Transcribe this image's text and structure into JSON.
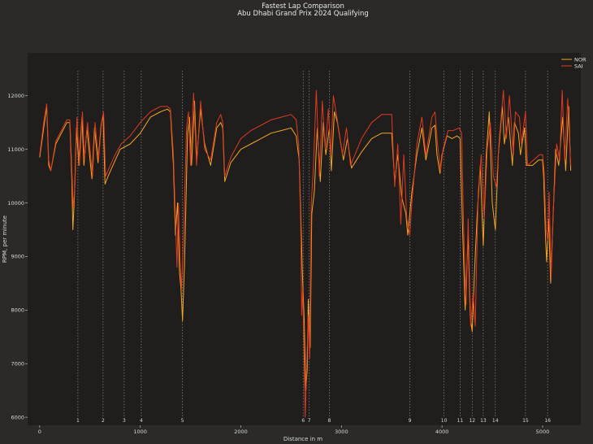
{
  "chart_data": {
    "type": "line",
    "title": "Fastest Lap Comparison",
    "subtitle": "Abu Dhabi Grand Prix 2024 Qualifying",
    "xlabel": "Distance in m",
    "ylabel": "RPM, per minute",
    "xlim": [
      -120,
      5380
    ],
    "ylim": [
      5850,
      12800
    ],
    "x_ticks": [
      0,
      1000,
      2000,
      3000,
      4000,
      5000
    ],
    "y_ticks": [
      6000,
      7000,
      8000,
      9000,
      10000,
      11000,
      12000
    ],
    "grid": false,
    "legend": "top-right",
    "corners": [
      {
        "label": "1",
        "distance": 380
      },
      {
        "label": "2",
        "distance": 630
      },
      {
        "label": "3",
        "distance": 840
      },
      {
        "label": "4",
        "distance": 1010
      },
      {
        "label": "5",
        "distance": 1420
      },
      {
        "label": "6",
        "distance": 2620
      },
      {
        "label": "7",
        "distance": 2680
      },
      {
        "label": "8",
        "distance": 2880
      },
      {
        "label": "9",
        "distance": 3680
      },
      {
        "label": "10",
        "distance": 4020
      },
      {
        "label": "11",
        "distance": 4180
      },
      {
        "label": "12",
        "distance": 4300
      },
      {
        "label": "13",
        "distance": 4410
      },
      {
        "label": "14",
        "distance": 4530
      },
      {
        "label": "15",
        "distance": 4830
      },
      {
        "label": "16",
        "distance": 5050
      }
    ],
    "series": [
      {
        "name": "NOR",
        "color": "#f5a623",
        "points": [
          [
            0,
            10850
          ],
          [
            40,
            11400
          ],
          [
            70,
            11800
          ],
          [
            90,
            10700
          ],
          [
            110,
            10600
          ],
          [
            160,
            11100
          ],
          [
            270,
            11500
          ],
          [
            300,
            11500
          ],
          [
            320,
            10400
          ],
          [
            330,
            9500
          ],
          [
            345,
            10100
          ],
          [
            365,
            11400
          ],
          [
            390,
            10700
          ],
          [
            420,
            11600
          ],
          [
            440,
            10700
          ],
          [
            470,
            11400
          ],
          [
            500,
            10800
          ],
          [
            520,
            10450
          ],
          [
            545,
            11400
          ],
          [
            580,
            10750
          ],
          [
            610,
            11450
          ],
          [
            630,
            11650
          ],
          [
            650,
            10350
          ],
          [
            680,
            10500
          ],
          [
            740,
            10750
          ],
          [
            800,
            11000
          ],
          [
            900,
            11100
          ],
          [
            1000,
            11300
          ],
          [
            1100,
            11600
          ],
          [
            1200,
            11700
          ],
          [
            1270,
            11750
          ],
          [
            1300,
            11700
          ],
          [
            1330,
            10700
          ],
          [
            1350,
            9400
          ],
          [
            1370,
            10000
          ],
          [
            1390,
            8700
          ],
          [
            1405,
            8400
          ],
          [
            1420,
            7800
          ],
          [
            1440,
            8900
          ],
          [
            1470,
            11300
          ],
          [
            1490,
            11600
          ],
          [
            1510,
            10700
          ],
          [
            1540,
            11900
          ],
          [
            1560,
            10800
          ],
          [
            1600,
            11750
          ],
          [
            1640,
            11100
          ],
          [
            1700,
            10700
          ],
          [
            1760,
            11400
          ],
          [
            1800,
            11500
          ],
          [
            1820,
            11400
          ],
          [
            1840,
            10400
          ],
          [
            1900,
            10750
          ],
          [
            2000,
            11000
          ],
          [
            2100,
            11100
          ],
          [
            2200,
            11200
          ],
          [
            2300,
            11300
          ],
          [
            2400,
            11350
          ],
          [
            2500,
            11400
          ],
          [
            2550,
            11250
          ],
          [
            2580,
            10800
          ],
          [
            2600,
            9500
          ],
          [
            2610,
            8800
          ],
          [
            2630,
            7800
          ],
          [
            2645,
            6500
          ],
          [
            2660,
            6900
          ],
          [
            2670,
            8200
          ],
          [
            2690,
            7300
          ],
          [
            2705,
            9800
          ],
          [
            2730,
            10200
          ],
          [
            2760,
            11400
          ],
          [
            2790,
            10400
          ],
          [
            2820,
            11500
          ],
          [
            2845,
            10900
          ],
          [
            2880,
            11400
          ],
          [
            2900,
            10600
          ],
          [
            2930,
            11700
          ],
          [
            2960,
            11500
          ],
          [
            3020,
            10800
          ],
          [
            3060,
            11200
          ],
          [
            3100,
            10650
          ],
          [
            3200,
            10950
          ],
          [
            3300,
            11200
          ],
          [
            3400,
            11300
          ],
          [
            3500,
            11300
          ],
          [
            3530,
            10400
          ],
          [
            3560,
            10900
          ],
          [
            3600,
            10100
          ],
          [
            3640,
            9800
          ],
          [
            3660,
            9400
          ],
          [
            3700,
            10200
          ],
          [
            3750,
            10900
          ],
          [
            3800,
            11400
          ],
          [
            3840,
            10800
          ],
          [
            3900,
            11400
          ],
          [
            3930,
            11450
          ],
          [
            3950,
            10900
          ],
          [
            3980,
            10550
          ],
          [
            4000,
            10900
          ],
          [
            4050,
            11250
          ],
          [
            4100,
            11200
          ],
          [
            4150,
            11250
          ],
          [
            4180,
            11200
          ],
          [
            4200,
            9800
          ],
          [
            4230,
            8000
          ],
          [
            4260,
            9400
          ],
          [
            4280,
            7900
          ],
          [
            4300,
            7600
          ],
          [
            4320,
            8600
          ],
          [
            4350,
            9800
          ],
          [
            4380,
            10700
          ],
          [
            4410,
            9200
          ],
          [
            4440,
            10900
          ],
          [
            4470,
            11700
          ],
          [
            4500,
            10000
          ],
          [
            4530,
            9500
          ],
          [
            4560,
            10900
          ],
          [
            4600,
            11800
          ],
          [
            4620,
            11100
          ],
          [
            4660,
            11600
          ],
          [
            4700,
            10700
          ],
          [
            4720,
            11500
          ],
          [
            4760,
            11300
          ],
          [
            4780,
            10900
          ],
          [
            4820,
            11400
          ],
          [
            4840,
            10700
          ],
          [
            4900,
            10700
          ],
          [
            4960,
            10800
          ],
          [
            5000,
            10800
          ],
          [
            5010,
            10500
          ],
          [
            5030,
            9300
          ],
          [
            5040,
            8900
          ],
          [
            5060,
            9700
          ],
          [
            5080,
            8500
          ],
          [
            5100,
            9500
          ],
          [
            5130,
            11000
          ],
          [
            5160,
            10700
          ],
          [
            5200,
            11600
          ],
          [
            5230,
            10600
          ],
          [
            5260,
            11800
          ],
          [
            5280,
            10600
          ]
        ]
      },
      {
        "name": "SAI",
        "color": "#e03a1e",
        "points": [
          [
            0,
            10900
          ],
          [
            40,
            11500
          ],
          [
            70,
            11850
          ],
          [
            90,
            10800
          ],
          [
            110,
            10600
          ],
          [
            160,
            11150
          ],
          [
            270,
            11550
          ],
          [
            300,
            11550
          ],
          [
            320,
            10600
          ],
          [
            335,
            9900
          ],
          [
            350,
            10300
          ],
          [
            370,
            11600
          ],
          [
            395,
            10700
          ],
          [
            425,
            11700
          ],
          [
            445,
            10800
          ],
          [
            475,
            11500
          ],
          [
            505,
            10900
          ],
          [
            525,
            10500
          ],
          [
            550,
            11500
          ],
          [
            585,
            10800
          ],
          [
            615,
            11500
          ],
          [
            635,
            11700
          ],
          [
            655,
            10500
          ],
          [
            690,
            10650
          ],
          [
            750,
            10900
          ],
          [
            810,
            11100
          ],
          [
            900,
            11250
          ],
          [
            1000,
            11500
          ],
          [
            1100,
            11700
          ],
          [
            1200,
            11800
          ],
          [
            1270,
            11800
          ],
          [
            1300,
            11750
          ],
          [
            1330,
            10900
          ],
          [
            1350,
            9700
          ],
          [
            1365,
            8800
          ],
          [
            1380,
            10000
          ],
          [
            1395,
            9000
          ],
          [
            1410,
            8400
          ],
          [
            1430,
            9300
          ],
          [
            1460,
            11400
          ],
          [
            1480,
            11700
          ],
          [
            1500,
            10700
          ],
          [
            1530,
            12050
          ],
          [
            1560,
            10700
          ],
          [
            1600,
            11900
          ],
          [
            1640,
            11000
          ],
          [
            1700,
            10800
          ],
          [
            1760,
            11500
          ],
          [
            1800,
            11650
          ],
          [
            1820,
            11500
          ],
          [
            1840,
            10500
          ],
          [
            1900,
            10850
          ],
          [
            2000,
            11200
          ],
          [
            2100,
            11350
          ],
          [
            2200,
            11450
          ],
          [
            2300,
            11550
          ],
          [
            2400,
            11600
          ],
          [
            2500,
            11650
          ],
          [
            2550,
            11550
          ],
          [
            2575,
            11100
          ],
          [
            2595,
            9600
          ],
          [
            2605,
            7900
          ],
          [
            2615,
            8400
          ],
          [
            2625,
            7600
          ],
          [
            2640,
            6000
          ],
          [
            2655,
            7000
          ],
          [
            2670,
            7900
          ],
          [
            2685,
            7100
          ],
          [
            2700,
            10000
          ],
          [
            2720,
            10600
          ],
          [
            2750,
            12100
          ],
          [
            2780,
            10500
          ],
          [
            2810,
            11900
          ],
          [
            2840,
            11000
          ],
          [
            2870,
            11750
          ],
          [
            2895,
            10900
          ],
          [
            2920,
            12000
          ],
          [
            2955,
            11600
          ],
          [
            3010,
            10900
          ],
          [
            3050,
            11400
          ],
          [
            3090,
            10700
          ],
          [
            3200,
            11200
          ],
          [
            3300,
            11500
          ],
          [
            3400,
            11650
          ],
          [
            3500,
            11650
          ],
          [
            3530,
            10300
          ],
          [
            3560,
            11100
          ],
          [
            3590,
            9600
          ],
          [
            3620,
            10900
          ],
          [
            3650,
            9700
          ],
          [
            3680,
            9400
          ],
          [
            3700,
            10000
          ],
          [
            3750,
            11100
          ],
          [
            3800,
            11600
          ],
          [
            3840,
            10900
          ],
          [
            3900,
            11600
          ],
          [
            3930,
            11700
          ],
          [
            3955,
            11100
          ],
          [
            3985,
            10600
          ],
          [
            4010,
            11000
          ],
          [
            4060,
            11350
          ],
          [
            4110,
            11350
          ],
          [
            4170,
            11400
          ],
          [
            4195,
            11300
          ],
          [
            4215,
            9500
          ],
          [
            4240,
            8100
          ],
          [
            4260,
            9700
          ],
          [
            4285,
            7700
          ],
          [
            4310,
            8300
          ],
          [
            4330,
            7700
          ],
          [
            4360,
            10200
          ],
          [
            4390,
            10900
          ],
          [
            4420,
            9700
          ],
          [
            4450,
            11000
          ],
          [
            4480,
            11500
          ],
          [
            4510,
            10500
          ],
          [
            4540,
            10300
          ],
          [
            4570,
            11200
          ],
          [
            4610,
            12100
          ],
          [
            4640,
            11200
          ],
          [
            4670,
            12000
          ],
          [
            4710,
            10900
          ],
          [
            4730,
            11700
          ],
          [
            4770,
            11600
          ],
          [
            4790,
            11100
          ],
          [
            4830,
            11700
          ],
          [
            4850,
            10700
          ],
          [
            4910,
            10800
          ],
          [
            4970,
            10900
          ],
          [
            5000,
            10900
          ],
          [
            5015,
            10600
          ],
          [
            5035,
            9500
          ],
          [
            5050,
            9300
          ],
          [
            5065,
            10200
          ],
          [
            5085,
            8600
          ],
          [
            5105,
            9800
          ],
          [
            5140,
            11100
          ],
          [
            5170,
            10800
          ],
          [
            5195,
            12100
          ],
          [
            5220,
            10800
          ],
          [
            5250,
            11950
          ],
          [
            5280,
            10700
          ]
        ]
      }
    ]
  }
}
